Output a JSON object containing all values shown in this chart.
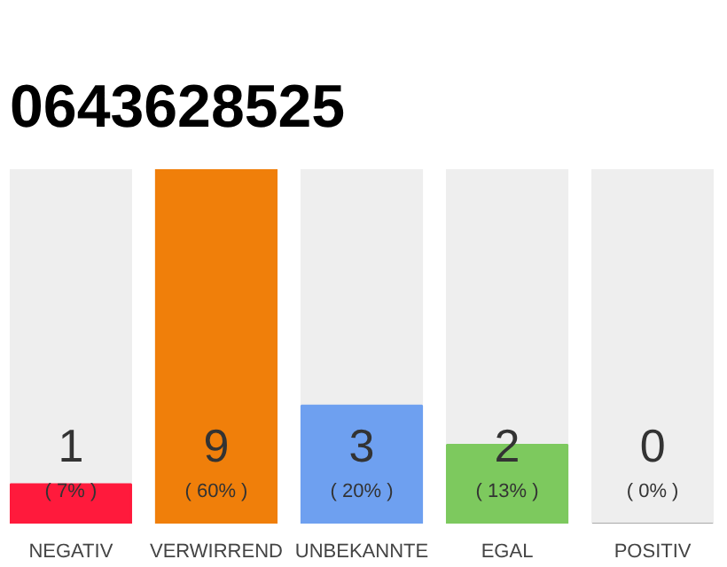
{
  "chart_data": {
    "type": "bar",
    "title": "0643628525",
    "categories": [
      "NEGATIV",
      "VERWIRREND",
      "UNBEKANNTE",
      "EGAL",
      "POSITIV"
    ],
    "values": [
      1,
      9,
      3,
      2,
      0
    ],
    "colors": [
      "#ff1a3c",
      "#f07f0a",
      "#6ea0f0",
      "#7dc95e",
      "#aaaaaa"
    ],
    "ylim": [
      0,
      9
    ],
    "data_labels": true,
    "grid": false,
    "tick_labels": "x",
    "annotations": [
      "( 7% )",
      "( 60% )",
      "( 20% )",
      "( 13% )",
      "( 0% )"
    ]
  }
}
